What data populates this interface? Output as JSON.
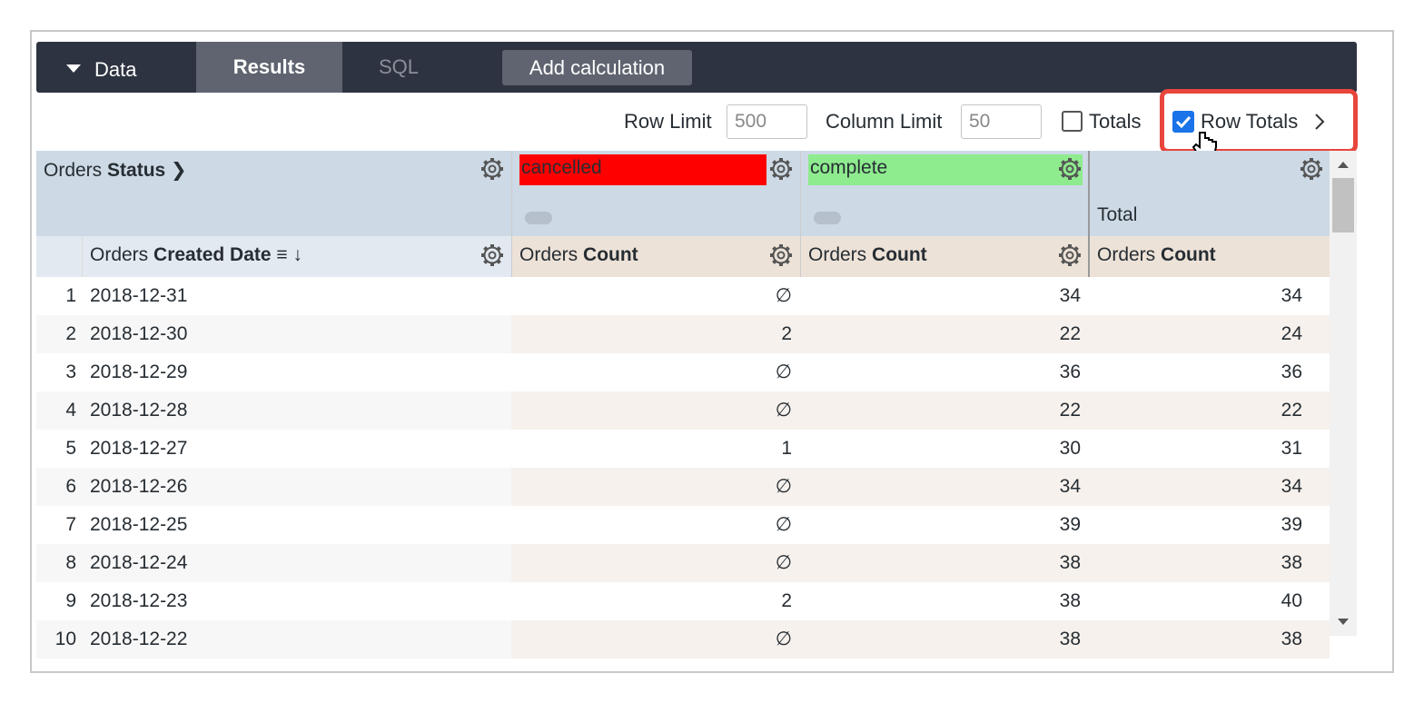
{
  "toolbar": {
    "data": "Data",
    "results": "Results",
    "sql": "SQL",
    "add_calculation": "Add calculation"
  },
  "controls": {
    "row_limit_label": "Row Limit",
    "row_limit": "500",
    "column_limit_label": "Column Limit",
    "column_limit": "50",
    "totals": "Totals",
    "row_totals": "Row Totals"
  },
  "table": {
    "pivot_label": {
      "prefix": "Orders",
      "field": "Status"
    },
    "pivots": [
      "cancelled",
      "complete"
    ],
    "total_label": "Total",
    "dimension_header": {
      "prefix": "Orders",
      "field": "Created Date"
    },
    "measure_header": {
      "prefix": "Orders",
      "field": "Count"
    },
    "rows": [
      [
        1,
        "2018-12-31",
        "∅",
        34,
        34
      ],
      [
        2,
        "2018-12-30",
        2,
        22,
        24
      ],
      [
        3,
        "2018-12-29",
        "∅",
        36,
        36
      ],
      [
        4,
        "2018-12-28",
        "∅",
        22,
        22
      ],
      [
        5,
        "2018-12-27",
        1,
        30,
        31
      ],
      [
        6,
        "2018-12-26",
        "∅",
        34,
        34
      ],
      [
        7,
        "2018-12-25",
        "∅",
        39,
        39
      ],
      [
        8,
        "2018-12-24",
        "∅",
        38,
        38
      ],
      [
        9,
        "2018-12-23",
        2,
        38,
        40
      ],
      [
        10,
        "2018-12-22",
        "∅",
        38,
        38
      ]
    ]
  }
}
